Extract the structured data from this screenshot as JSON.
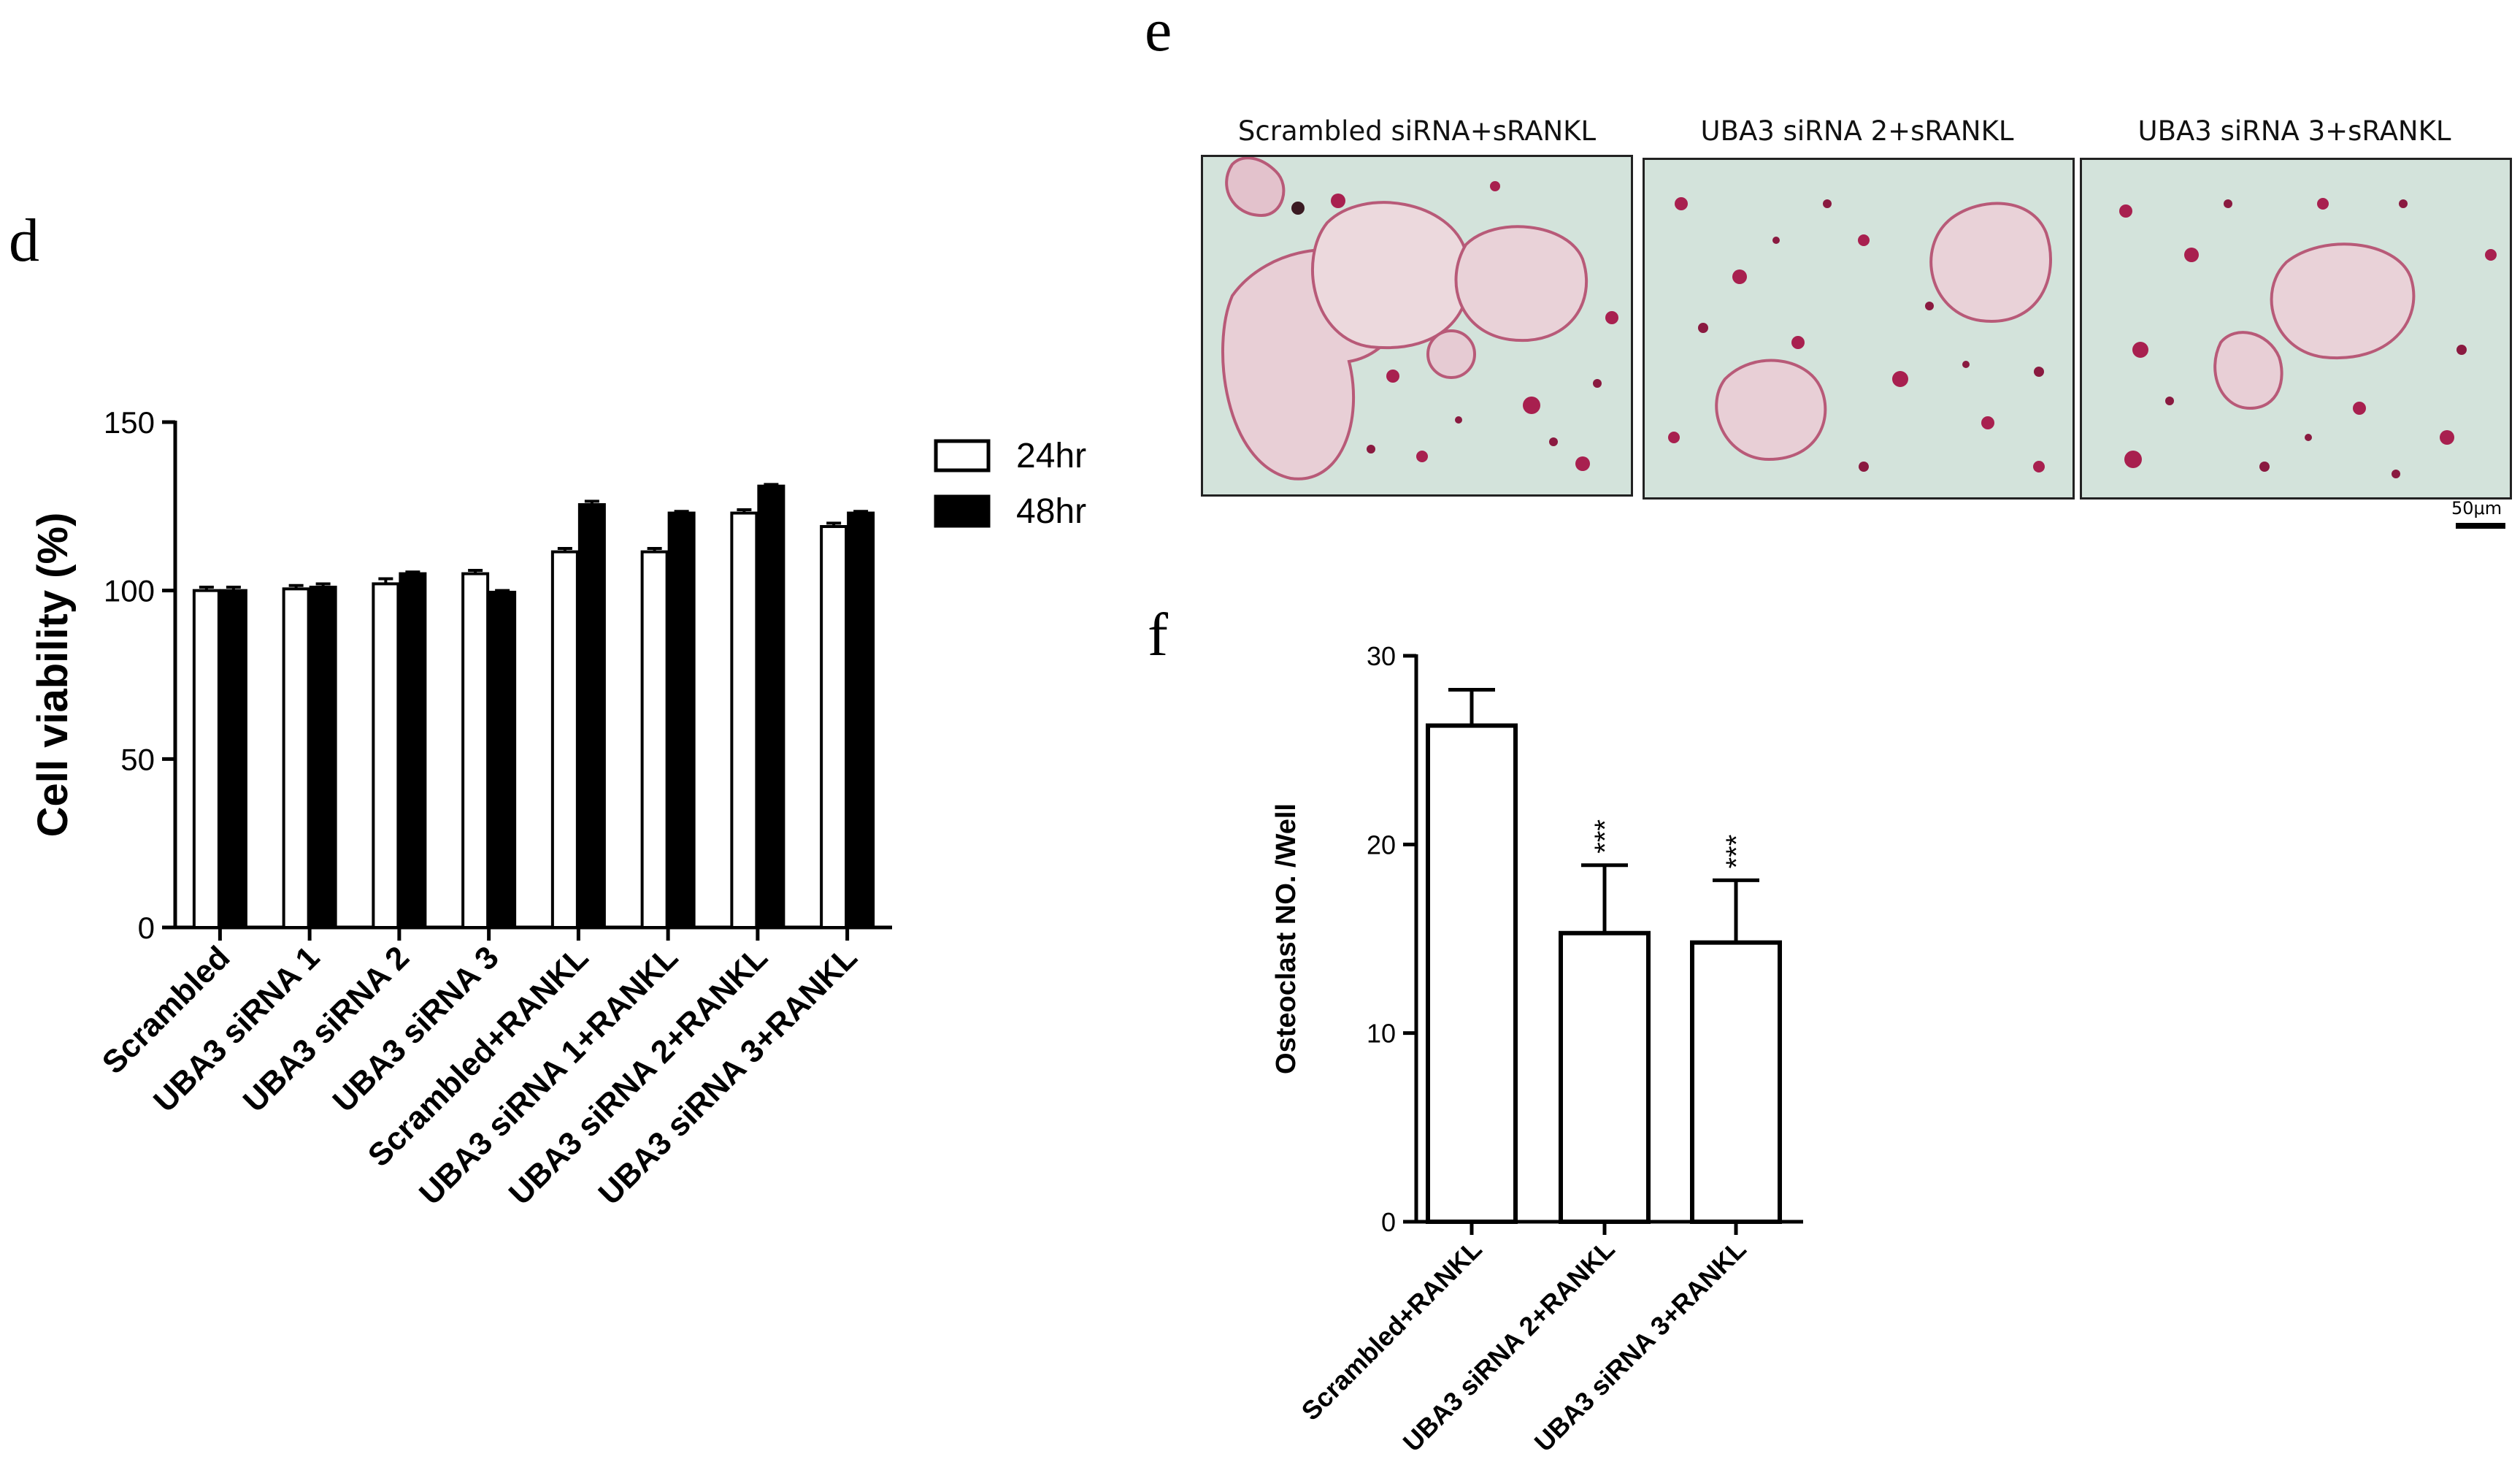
{
  "panels": {
    "d": "d",
    "e": "e",
    "f": "f"
  },
  "chart_data": [
    {
      "panel": "d",
      "type": "bar",
      "categories": [
        "Scrambled",
        "UBA3 siRNA 1",
        "UBA3 siRNA 2",
        "UBA3 siRNA 3",
        "Scrambled+RANKL",
        "UBA3 siRNA 1+RANKL",
        "UBA3 siRNA 2+RANKL",
        "UBA3 siRNA 3+RANKL"
      ],
      "series": [
        {
          "name": "24hr",
          "values": [
            100,
            100.5,
            102,
            105,
            111.5,
            111.5,
            123,
            119
          ],
          "errors": [
            1,
            1,
            1.5,
            1,
            1,
            1,
            1,
            1
          ],
          "fill": "#ffffff"
        },
        {
          "name": "48hr",
          "values": [
            100,
            101,
            105,
            99.5,
            125.5,
            123,
            131,
            123
          ],
          "errors": [
            1,
            1,
            0.5,
            0.5,
            1,
            0.5,
            0.5,
            0.5
          ],
          "fill": "#000000"
        }
      ],
      "title": "",
      "xlabel": "",
      "ylabel": "Cell viability (%)",
      "ylim": [
        0,
        150
      ],
      "yticks": [
        0,
        50,
        100,
        150
      ],
      "legend": "top-right",
      "grid": false
    },
    {
      "panel": "f",
      "type": "bar",
      "categories": [
        "Scrambled+RANKL",
        "UBA3 siRNA 2+RANKL",
        "UBA3 siRNA 3+RANKL"
      ],
      "values": [
        26.3,
        15.3,
        14.8
      ],
      "errors": [
        1.9,
        3.6,
        3.3
      ],
      "annotations": [
        "",
        "***",
        "***"
      ],
      "title": "",
      "xlabel": "",
      "ylabel": "Osteoclast NO. /Well",
      "ylim": [
        0,
        30
      ],
      "yticks": [
        0,
        10,
        20,
        30
      ],
      "grid": false
    }
  ],
  "micrographs": {
    "titles": [
      "Scrambled siRNA+sRANKL",
      "UBA3 siRNA 2+sRANKL",
      "UBA3 siRNA 3+sRANKL"
    ],
    "scale_bar": "50μm"
  }
}
